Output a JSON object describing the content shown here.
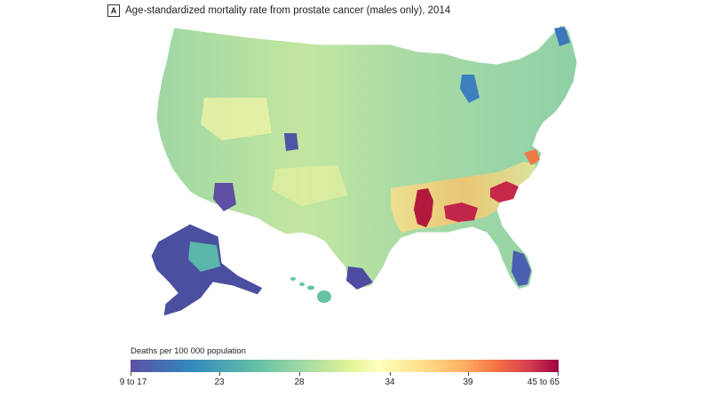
{
  "panel_label": "A",
  "title": "Age-standardized mortality rate from prostate cancer (males only), 2014",
  "legend": {
    "title": "Deaths per 100 000 population",
    "ticks": [
      "9 to 17",
      "23",
      "28",
      "34",
      "39",
      "45 to 65"
    ]
  },
  "colors": {
    "low": "#5e4fa2",
    "mid_low": "#66c2a5",
    "mid": "#ffffbf",
    "mid_high": "#f46d43",
    "high": "#9e0142",
    "state_border": "#ffffff",
    "ocean": "#ffffff"
  }
}
